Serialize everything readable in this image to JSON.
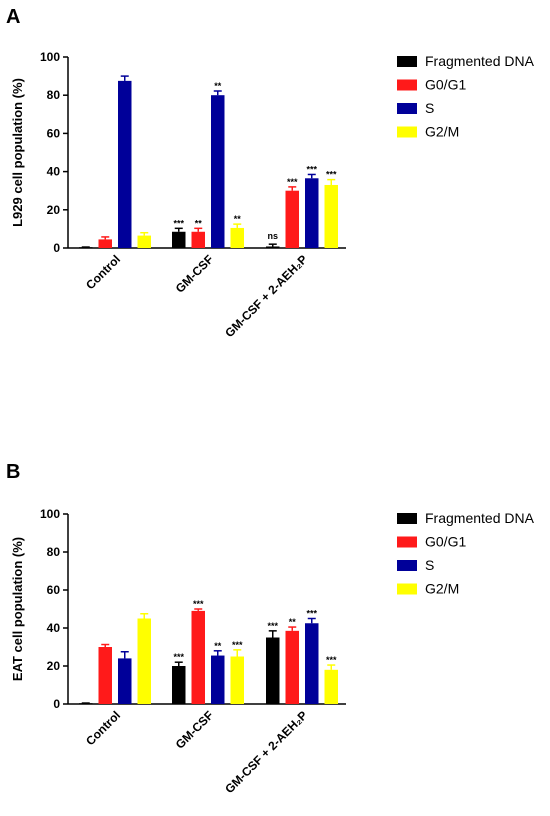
{
  "colors": {
    "Fragmented DNA": "#000000",
    "G0/G1": "#ff1a1a",
    "S": "#000099",
    "G2/M": "#ffff00"
  },
  "chart_data": [
    {
      "panel": "A",
      "type": "bar",
      "ylabel": "L929 cell population (%)",
      "ylim": [
        0,
        100
      ],
      "yticks": [
        0,
        20,
        40,
        60,
        80,
        100
      ],
      "categories": [
        "Control",
        "GM-CSF",
        "GM-CSF + 2-AEH₂P"
      ],
      "legend_position": "right",
      "series": [
        {
          "name": "Fragmented DNA",
          "values": [
            0.3,
            8.5,
            0.8
          ],
          "errors": [
            0.2,
            1.8,
            1.2
          ],
          "sig": [
            "",
            "***",
            "ns"
          ]
        },
        {
          "name": "G0/G1",
          "values": [
            4.5,
            8.5,
            30
          ],
          "errors": [
            1.3,
            1.8,
            2
          ],
          "sig": [
            "",
            "**",
            "***"
          ]
        },
        {
          "name": "S",
          "values": [
            87.5,
            80,
            36.5
          ],
          "errors": [
            2.5,
            2.2,
            2
          ],
          "sig": [
            "",
            "**",
            "***"
          ]
        },
        {
          "name": "G2/M",
          "values": [
            6.5,
            10.5,
            33
          ],
          "errors": [
            1.5,
            2,
            2.8
          ],
          "sig": [
            "",
            "**",
            "***"
          ]
        }
      ]
    },
    {
      "panel": "B",
      "type": "bar",
      "ylabel": "EAT cell population (%)",
      "ylim": [
        0,
        100
      ],
      "yticks": [
        0,
        20,
        40,
        60,
        80,
        100
      ],
      "categories": [
        "Control",
        "GM-CSF",
        "GM-CSF + 2-AEH₂P"
      ],
      "legend_position": "right",
      "series": [
        {
          "name": "Fragmented DNA",
          "values": [
            0.3,
            20,
            35
          ],
          "errors": [
            0.2,
            2,
            3.5
          ],
          "sig": [
            "",
            "***",
            "***"
          ]
        },
        {
          "name": "G0/G1",
          "values": [
            30,
            49,
            38.5
          ],
          "errors": [
            1.3,
            1,
            2
          ],
          "sig": [
            "",
            "***",
            "**"
          ]
        },
        {
          "name": "S",
          "values": [
            24,
            25.5,
            42.5
          ],
          "errors": [
            3.5,
            2.5,
            2.5
          ],
          "sig": [
            "",
            "**",
            "***"
          ]
        },
        {
          "name": "G2/M",
          "values": [
            45,
            25,
            18
          ],
          "errors": [
            2.5,
            3.5,
            2.5
          ],
          "sig": [
            "",
            "***",
            "***"
          ]
        }
      ]
    }
  ]
}
